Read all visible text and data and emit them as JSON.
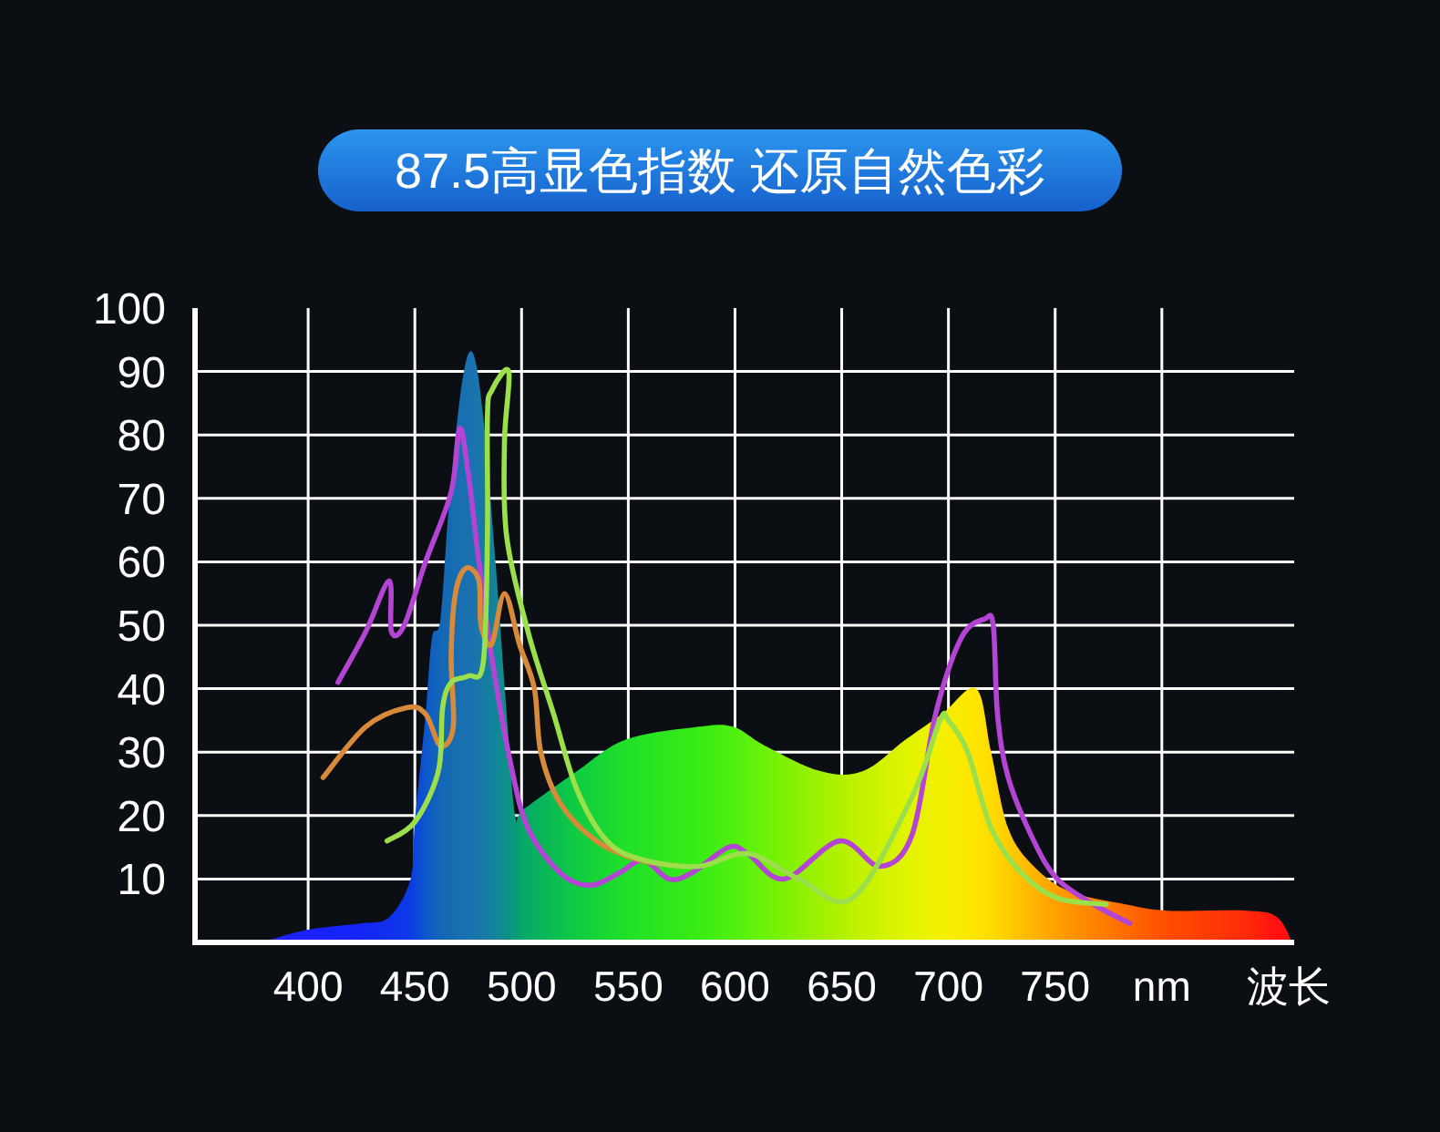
{
  "chart_data": {
    "type": "line",
    "title": "87.5高显色指数 还原自然色彩",
    "xlabel": "波长",
    "xlim": [
      347,
      862
    ],
    "xticks": [
      400,
      450,
      500,
      550,
      600,
      650,
      700,
      750,
      {
        "value": 800,
        "label": "nm"
      }
    ],
    "ylim": [
      0,
      100
    ],
    "yticks": [
      10,
      20,
      30,
      40,
      50,
      60,
      70,
      80,
      90,
      100
    ],
    "grid": true,
    "line_style": "solid",
    "series": [
      {
        "type": "area",
        "x": [
          378,
          400,
          425,
          438,
          448,
          450,
          455,
          458,
          462,
          466,
          472,
          477,
          482,
          488,
          493,
          497,
          501,
          526,
          549,
          583,
          599,
          614,
          640,
          660,
          680,
          697,
          713,
          720,
          728,
          740,
          757,
          783,
          803,
          840,
          854,
          861
        ],
        "values": [
          0,
          2,
          3,
          4,
          10,
          19,
          36,
          48,
          51,
          69,
          88,
          93,
          83,
          59,
          36,
          20,
          21,
          27,
          32,
          34,
          34,
          31,
          27,
          27,
          32,
          36,
          40,
          30,
          18,
          12,
          8,
          6,
          5,
          5,
          4,
          0
        ],
        "colors": [
          "#1a20ff",
          "#1a20ff",
          "#1525f5",
          "#1030ee",
          "#0c3ae6",
          "#0b45dd",
          "#0d55cc",
          "#105fc0",
          "#1366b6",
          "#156bb2",
          "#186fb0",
          "#1a72b0",
          "#177aa5",
          "#128598",
          "#0e9088",
          "#0a9a78",
          "#06a868",
          "#10cc40",
          "#20e028",
          "#38ec14",
          "#50f010",
          "#6cf208",
          "#a0f000",
          "#c4f200",
          "#e0f400",
          "#f4f000",
          "#ffe400",
          "#ffdc00",
          "#ffcc00",
          "#ffb400",
          "#ff9400",
          "#ff6c00",
          "#ff4c00",
          "#ff2a08",
          "#ff1010",
          "#ff1010"
        ]
      },
      {
        "color": "#b444d4",
        "x": [
          414,
          427,
          438,
          439,
          445,
          455,
          467,
          471,
          475,
          480,
          486,
          495,
          503,
          518,
          532,
          546,
          557,
          569,
          580,
          597,
          606,
          623,
          649,
          668,
          683,
          694,
          706,
          717,
          721,
          723,
          728,
          740,
          751,
          768,
          785
        ],
        "values": [
          41,
          49,
          57,
          49,
          50,
          60,
          71,
          81,
          74,
          60,
          45,
          28,
          18,
          11,
          9,
          11,
          13,
          10,
          11,
          15,
          14,
          10,
          16,
          12,
          17,
          36,
          48,
          51,
          50,
          36,
          26,
          16,
          10,
          6,
          3
        ]
      },
      {
        "color": "#d9893a",
        "x": [
          407,
          427,
          446,
          455,
          462,
          468,
          467,
          469,
          474,
          480,
          481,
          486,
          492,
          499,
          506,
          509,
          518,
          535,
          555,
          575
        ],
        "values": [
          26,
          34,
          37,
          36,
          31,
          34,
          45,
          55,
          59,
          57,
          50,
          47,
          55,
          47,
          40,
          30,
          22,
          16,
          13,
          12
        ]
      },
      {
        "color": "#9be04a",
        "x": [
          437,
          450,
          461,
          463,
          467,
          475,
          482,
          484,
          484,
          486,
          494,
          492,
          493,
          503,
          515,
          526,
          540,
          557,
          583,
          606,
          630,
          655,
          683,
          696,
          700,
          709,
          720,
          734,
          751,
          774
        ],
        "values": [
          16,
          19,
          27,
          37,
          41,
          42,
          44,
          64,
          83,
          87,
          90,
          79,
          64,
          49,
          36,
          24,
          16,
          13,
          12,
          14,
          10,
          7,
          23,
          35,
          35,
          30,
          18,
          11,
          7,
          6
        ]
      }
    ]
  }
}
